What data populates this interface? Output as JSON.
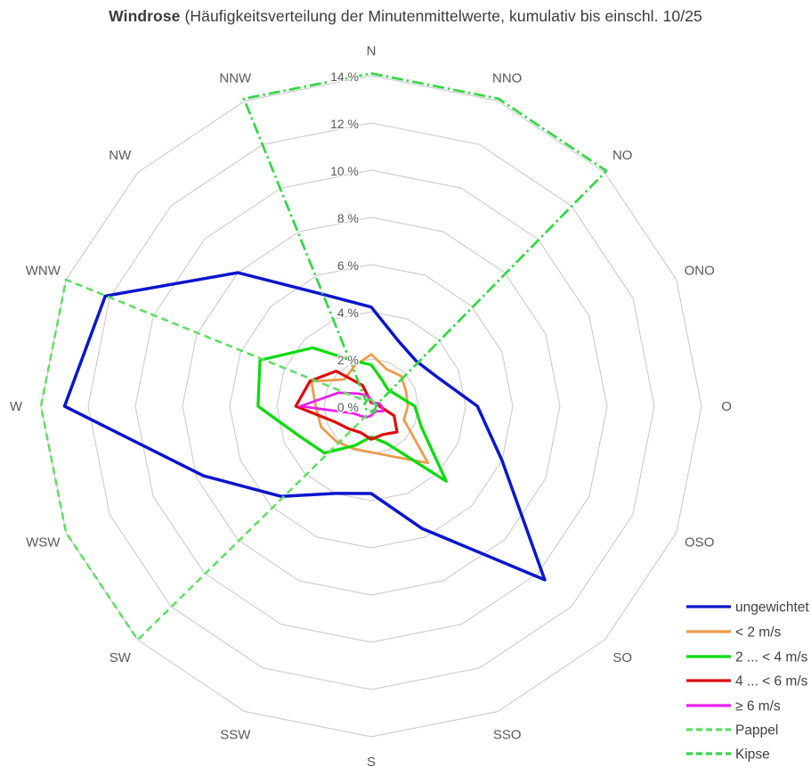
{
  "title": {
    "bold": "Windrose",
    "rest": " (Häufigkeitsverteilung der Minutenmittelwerte, kumulativ bis einschl. 10/25"
  },
  "colors": {
    "grid": "#c6c6c6",
    "tick_text": "#595959",
    "direction_text": "#595959",
    "legend_text": "#404040",
    "title_text": "#3b3b3b",
    "background": "#ffffff"
  },
  "chart_data": {
    "type": "line",
    "subtype": "radar-polar",
    "title": "Windrose (Häufigkeitsverteilung der Minutenmittelwerte, kumulativ bis einschl. 10/25",
    "categories": [
      "N",
      "NNO",
      "NO",
      "ONO",
      "O",
      "OSO",
      "SO",
      "SSO",
      "S",
      "SSW",
      "SW",
      "WSW",
      "W",
      "WNW",
      "NW",
      "NNW"
    ],
    "radial_axis": {
      "unit": "%",
      "min": 0,
      "max": 14,
      "tick_step": 2,
      "tick_labels": [
        "0 %",
        "2 %",
        "4 %",
        "6 %",
        "8 %",
        "10 %",
        "12 %",
        "14 %"
      ],
      "grid": "rings-every-2-percent",
      "spokes": false
    },
    "legend_position": "bottom-right",
    "series": [
      {
        "name": "ungewichtet",
        "color": "#0a16cc",
        "dash": "solid",
        "width": 3.5,
        "values": [
          4.2,
          3.0,
          2.7,
          3.1,
          4.5,
          6.0,
          10.4,
          5.6,
          3.7,
          4.0,
          5.4,
          7.7,
          13.0,
          12.2,
          8.0,
          5.1
        ]
      },
      {
        "name": "< 2 m/s",
        "color": "#ed9b49",
        "dash": "solid",
        "width": 2.75,
        "values": [
          2.2,
          1.7,
          1.8,
          1.6,
          1.55,
          1.5,
          3.4,
          2.3,
          1.95,
          1.95,
          2.1,
          2.3,
          2.35,
          2.75,
          1.6,
          1.85
        ]
      },
      {
        "name": "2 ... < 4 m/s",
        "color": "#0adb0a",
        "dash": "solid",
        "width": 3.25,
        "values": [
          1.75,
          1.2,
          1.0,
          1.2,
          1.85,
          2.3,
          4.5,
          1.7,
          1.3,
          1.8,
          2.8,
          3.3,
          4.8,
          5.1,
          3.5,
          2.1
        ]
      },
      {
        "name": "4 ... < 6 m/s",
        "color": "#dc0d0d",
        "dash": "solid",
        "width": 3.25,
        "values": [
          0.15,
          0.15,
          0.2,
          0.3,
          0.35,
          1.05,
          1.55,
          1.3,
          1.4,
          1.2,
          1.35,
          1.7,
          3.2,
          2.8,
          2.1,
          0.95
        ]
      },
      {
        "name": "≥ 6 m/s",
        "color": "#ee1cee",
        "dash": "solid",
        "width": 2.75,
        "values": [
          0.3,
          0.15,
          0.15,
          0.35,
          0.45,
          0.55,
          0.3,
          0.3,
          0.4,
          0.5,
          0.6,
          0.8,
          3.0,
          1.5,
          0.75,
          0.5
        ]
      },
      {
        "name": "Pappel",
        "color": "#5fdd5f",
        "dash": "dashed",
        "width": 2.5,
        "values": [
          0.3,
          0.2,
          0.2,
          0.2,
          0.2,
          0.2,
          0.25,
          0.25,
          0.3,
          0.35,
          14.0,
          14.0,
          14.0,
          14.0,
          0.3,
          0.3
        ]
      },
      {
        "name": "Kipse",
        "color": "#35d747",
        "dash": "dash-dot",
        "width": 2.75,
        "values": [
          14.1,
          14.1,
          14.1,
          0.3,
          0.2,
          0.2,
          0.2,
          0.2,
          0.2,
          0.2,
          0.25,
          0.25,
          0.3,
          0.3,
          0.3,
          14.1
        ]
      }
    ]
  }
}
